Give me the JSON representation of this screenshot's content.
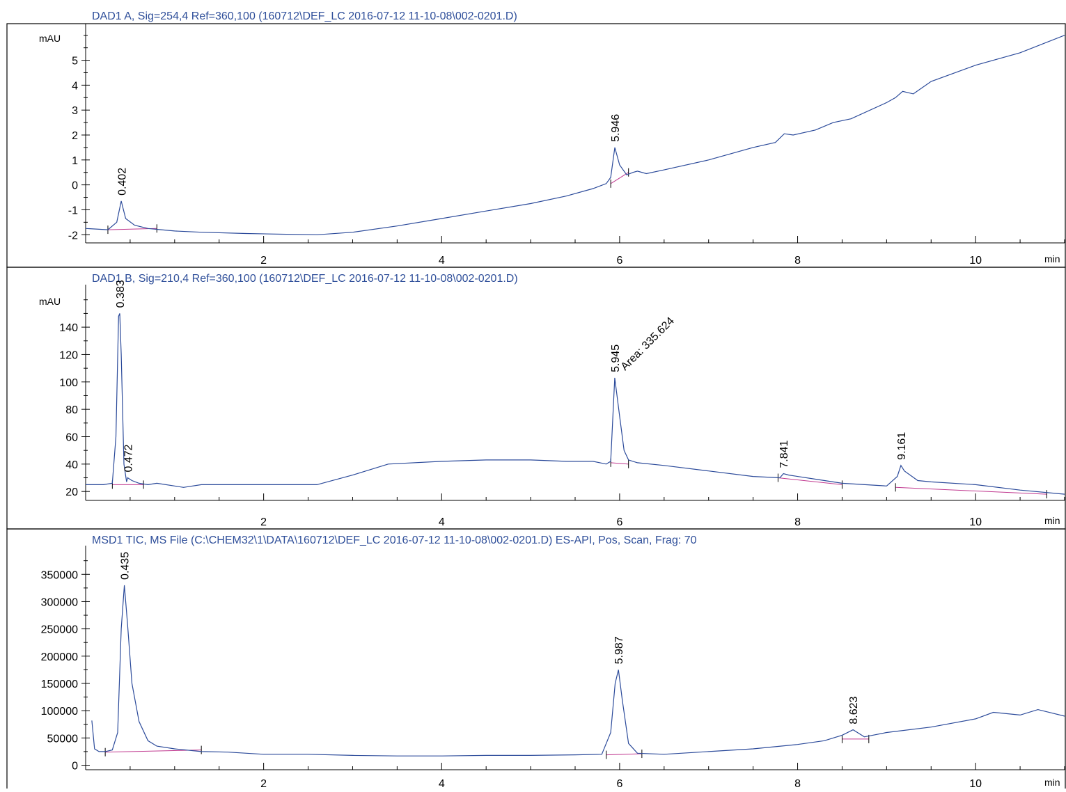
{
  "chart_data": [
    {
      "type": "line",
      "title": "DAD1 A, Sig=254,4 Ref=360,100 (160712\\DEF_LC 2016-07-12 11-10-08\\002-0201.D)",
      "xlabel": "min",
      "ylabel": "mAU",
      "xlim": [
        0,
        11
      ],
      "ylim": [
        -2.3,
        6.3
      ],
      "x_ticks": [
        "2",
        "4",
        "6",
        "8",
        "10"
      ],
      "y_ticks": [
        "-2",
        "-1",
        "0",
        "1",
        "2",
        "3",
        "4",
        "5"
      ],
      "series": [
        {
          "x": [
            0,
            0.25,
            0.35,
            0.4,
            0.45,
            0.55,
            0.7,
            0.85,
            1.0,
            1.3,
            1.8,
            2.2,
            2.6,
            3.0,
            3.5,
            4.0,
            4.5,
            5.0,
            5.4,
            5.7,
            5.85,
            5.9,
            5.946,
            6.0,
            6.08,
            6.15,
            6.2,
            6.3,
            6.5,
            7.0,
            7.5,
            7.75,
            7.85,
            7.95,
            8.2,
            8.4,
            8.6,
            9.0,
            9.1,
            9.18,
            9.3,
            9.5,
            10.0,
            10.5,
            11.0
          ],
          "y": [
            -1.75,
            -1.8,
            -1.5,
            -0.65,
            -1.35,
            -1.62,
            -1.75,
            -1.8,
            -1.85,
            -1.9,
            -1.95,
            -1.98,
            -2.0,
            -1.9,
            -1.65,
            -1.35,
            -1.05,
            -0.75,
            -0.45,
            -0.15,
            0.05,
            0.3,
            1.5,
            0.8,
            0.4,
            0.5,
            0.55,
            0.45,
            0.6,
            1.0,
            1.5,
            1.7,
            2.05,
            2.0,
            2.2,
            2.5,
            2.65,
            3.3,
            3.5,
            3.75,
            3.65,
            4.15,
            4.8,
            5.3,
            6.0
          ]
        }
      ],
      "peaks": [
        {
          "label": "0.402",
          "x": 0.402,
          "y": -0.65
        },
        {
          "label": "5.946",
          "x": 5.946,
          "y": 1.5
        }
      ],
      "baselines": [
        {
          "x": [
            0.25,
            0.8
          ],
          "y": [
            -1.8,
            -1.75
          ]
        },
        {
          "x": [
            5.9,
            6.1
          ],
          "y": [
            0.05,
            0.5
          ]
        }
      ]
    },
    {
      "type": "line",
      "title": "DAD1 B, Sig=210,4 Ref=360,100 (160712\\DEF_LC 2016-07-12 11-10-08\\002-0201.D)",
      "xlabel": "min",
      "ylabel": "mAU",
      "xlim": [
        0,
        11
      ],
      "ylim": [
        14,
        168
      ],
      "x_ticks": [
        "2",
        "4",
        "6",
        "8",
        "10"
      ],
      "y_ticks": [
        "20",
        "40",
        "60",
        "80",
        "100",
        "120",
        "140"
      ],
      "series": [
        {
          "x": [
            0,
            0.2,
            0.3,
            0.34,
            0.37,
            0.383,
            0.4,
            0.43,
            0.46,
            0.472,
            0.52,
            0.6,
            0.7,
            0.8,
            1.0,
            1.1,
            1.3,
            2.0,
            2.6,
            3.0,
            3.4,
            4.0,
            4.5,
            5.0,
            5.4,
            5.7,
            5.85,
            5.9,
            5.945,
            6.0,
            6.05,
            6.1,
            6.2,
            6.5,
            7.0,
            7.5,
            7.8,
            7.841,
            7.9,
            8.2,
            8.5,
            9.0,
            9.12,
            9.161,
            9.2,
            9.35,
            9.5,
            10.0,
            10.5,
            11.0
          ],
          "y": [
            25,
            25,
            26,
            60,
            148,
            150,
            120,
            40,
            27,
            30,
            28,
            26,
            25,
            26,
            24,
            23,
            25,
            25,
            25,
            32,
            40,
            42,
            43,
            43,
            42,
            42,
            40,
            42,
            103,
            75,
            50,
            43,
            41,
            39,
            35,
            31,
            30,
            33,
            32,
            29,
            26,
            24,
            31,
            39,
            35,
            28,
            27,
            25,
            21,
            18
          ]
        }
      ],
      "peaks": [
        {
          "label": "0.383",
          "x": 0.383,
          "y": 150
        },
        {
          "label": "0.472",
          "x": 0.472,
          "y": 30
        },
        {
          "label": "5.945",
          "x": 5.945,
          "y": 103
        },
        {
          "label": "7.841",
          "x": 7.841,
          "y": 33
        },
        {
          "label": "9.161",
          "x": 9.161,
          "y": 39
        }
      ],
      "annotations": [
        {
          "text": "Area: 335.624",
          "x": 6.0,
          "y": 106
        }
      ],
      "baselines": [
        {
          "x": [
            0.3,
            0.65
          ],
          "y": [
            25,
            25
          ]
        },
        {
          "x": [
            5.9,
            6.1
          ],
          "y": [
            41,
            40
          ]
        },
        {
          "x": [
            7.78,
            8.5
          ],
          "y": [
            30,
            25
          ]
        },
        {
          "x": [
            9.1,
            10.8
          ],
          "y": [
            23,
            18
          ]
        }
      ]
    },
    {
      "type": "line",
      "title": "MSD1 TIC, MS File (C:\\CHEM32\\1\\DATA\\160712\\DEF_LC 2016-07-12 11-10-08\\002-0201.D)   ES-API, Pos, Scan, Frag: 70",
      "xlabel": "min",
      "ylabel": "",
      "xlim": [
        0,
        11
      ],
      "ylim": [
        -7000,
        395000
      ],
      "x_ticks": [
        "2",
        "4",
        "6",
        "8",
        "10"
      ],
      "y_ticks": [
        "0",
        "50000",
        "100000",
        "150000",
        "200000",
        "250000",
        "300000",
        "350000"
      ],
      "series": [
        {
          "x": [
            0.07,
            0.1,
            0.15,
            0.22,
            0.3,
            0.36,
            0.4,
            0.435,
            0.47,
            0.52,
            0.6,
            0.7,
            0.8,
            1.0,
            1.3,
            1.6,
            2.0,
            2.5,
            3.0,
            3.5,
            4.0,
            4.5,
            5.0,
            5.5,
            5.8,
            5.9,
            5.95,
            5.987,
            6.03,
            6.1,
            6.2,
            6.5,
            7.0,
            7.5,
            8.0,
            8.3,
            8.5,
            8.623,
            8.75,
            9.0,
            9.5,
            10.0,
            10.2,
            10.5,
            10.7,
            11.0
          ],
          "y": [
            82000,
            30000,
            25000,
            25000,
            28000,
            60000,
            250000,
            330000,
            260000,
            150000,
            80000,
            45000,
            35000,
            30000,
            25000,
            24000,
            20000,
            20000,
            18000,
            17000,
            17000,
            18000,
            18000,
            19000,
            20000,
            60000,
            150000,
            175000,
            120000,
            40000,
            22000,
            20000,
            25000,
            30000,
            38000,
            45000,
            55000,
            65000,
            52000,
            60000,
            70000,
            85000,
            97000,
            92000,
            102000,
            90000
          ]
        }
      ],
      "peaks": [
        {
          "label": "0.435",
          "x": 0.435,
          "y": 330000
        },
        {
          "label": "5.987",
          "x": 5.987,
          "y": 175000
        },
        {
          "label": "8.623",
          "x": 8.623,
          "y": 65000
        }
      ],
      "baselines": [
        {
          "x": [
            0.22,
            1.3
          ],
          "y": [
            24000,
            28000
          ]
        },
        {
          "x": [
            5.85,
            6.25
          ],
          "y": [
            19000,
            21000
          ]
        },
        {
          "x": [
            8.5,
            8.8
          ],
          "y": [
            48000,
            48000
          ]
        }
      ]
    }
  ]
}
